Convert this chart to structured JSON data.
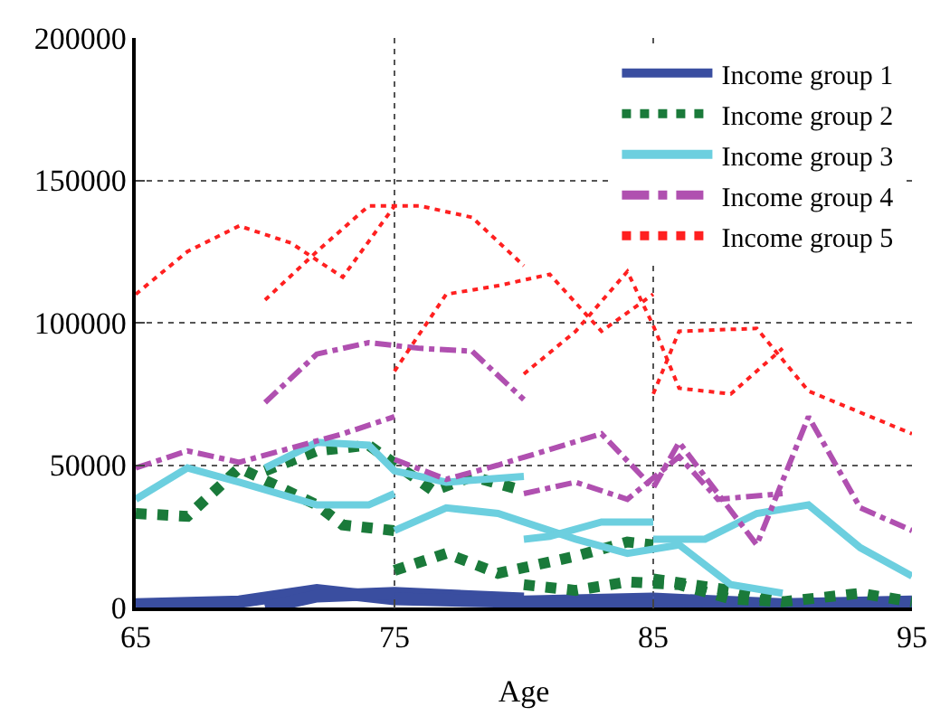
{
  "chart_data": {
    "type": "line",
    "xlabel": "Age",
    "xlim": [
      65,
      95
    ],
    "xticks": [
      65,
      75,
      85,
      95
    ],
    "ylim": [
      0,
      200000
    ],
    "yticks": [
      0,
      50000,
      100000,
      150000,
      200000
    ],
    "grid": true,
    "legend": "top right",
    "marker": "none",
    "series": [
      {
        "name": "Income group 1",
        "color": "#3a4ea0",
        "line_style": "solid",
        "x": [
          65,
          69,
          72,
          75,
          null,
          70,
          72,
          75,
          80,
          null,
          75,
          80,
          85,
          null,
          80,
          85,
          90,
          null,
          85,
          90,
          95
        ],
        "values": [
          1000,
          2000,
          6000,
          3000,
          null,
          0,
          4000,
          5000,
          3000,
          null,
          3000,
          2000,
          3000,
          null,
          1000,
          1000,
          0,
          null,
          3000,
          1000,
          2000
        ]
      },
      {
        "name": "Income group 2",
        "color": "#1a7a3a",
        "line_style": "dotted",
        "x": [
          65,
          67,
          69,
          72,
          73,
          75,
          null,
          70,
          72,
          74,
          76.5,
          78,
          80,
          null,
          75,
          77,
          79,
          80,
          82,
          84,
          85,
          null,
          80,
          82,
          84,
          86,
          88,
          90,
          null,
          85,
          88,
          90,
          93,
          95
        ],
        "values": [
          33000,
          32000,
          49000,
          36000,
          29000,
          27000,
          null,
          48000,
          55000,
          57000,
          41000,
          46000,
          41000,
          null,
          13000,
          19000,
          12000,
          14000,
          18000,
          23000,
          22000,
          null,
          8000,
          6000,
          9000,
          8000,
          3000,
          2000,
          null,
          10000,
          6000,
          2000,
          5000,
          2000
        ]
      },
      {
        "name": "Income group 3",
        "color": "#6ccfdf",
        "line_style": "solid",
        "x": [
          65,
          67,
          69,
          72,
          74,
          75,
          null,
          70,
          72,
          74,
          75,
          77,
          80,
          null,
          75,
          77,
          79,
          82,
          84,
          86,
          88,
          90,
          null,
          80,
          81,
          83,
          85,
          null,
          85,
          87,
          89,
          91,
          93,
          95
        ],
        "values": [
          38000,
          49000,
          44000,
          36000,
          36000,
          40000,
          null,
          49000,
          58000,
          57000,
          48000,
          44000,
          46000,
          null,
          27000,
          35000,
          33000,
          24000,
          19000,
          22000,
          8000,
          5000,
          null,
          24000,
          25000,
          30000,
          30000,
          null,
          24000,
          24000,
          33000,
          36000,
          21000,
          11000
        ]
      },
      {
        "name": "Income group 4",
        "color": "#b050b0",
        "line_style": "dashdot",
        "x": [
          65,
          67,
          69,
          71,
          73,
          75,
          null,
          70,
          72,
          74,
          76,
          78,
          80,
          null,
          75,
          77,
          79,
          83,
          85,
          86,
          89,
          91,
          93,
          95,
          null,
          80,
          82,
          84,
          86,
          87.5,
          90
        ],
        "values": [
          49000,
          55000,
          51000,
          56000,
          61000,
          67000,
          null,
          72000,
          89000,
          93000,
          91000,
          90000,
          73000,
          null,
          52000,
          45000,
          50000,
          61000,
          42000,
          58000,
          22000,
          67000,
          35000,
          27000,
          null,
          40000,
          44000,
          38000,
          53000,
          38000,
          40000
        ]
      },
      {
        "name": "Income group 5",
        "color": "#ff2020",
        "line_style": "dotted",
        "x": [
          65,
          67,
          69,
          71,
          73,
          75,
          null,
          70,
          72,
          74,
          76,
          78,
          80,
          null,
          75,
          77,
          79,
          81,
          83,
          85,
          null,
          80,
          82,
          84,
          85,
          86,
          88,
          90,
          null,
          85,
          86,
          89,
          91,
          95
        ],
        "values": [
          110000,
          125000,
          134000,
          128000,
          116000,
          141000,
          null,
          108000,
          125000,
          141000,
          141000,
          137000,
          120000,
          null,
          83000,
          110000,
          113000,
          117000,
          97000,
          110000,
          null,
          82000,
          97000,
          118000,
          99000,
          77000,
          75000,
          91000,
          null,
          75000,
          97000,
          98000,
          76000,
          61000
        ]
      }
    ]
  }
}
